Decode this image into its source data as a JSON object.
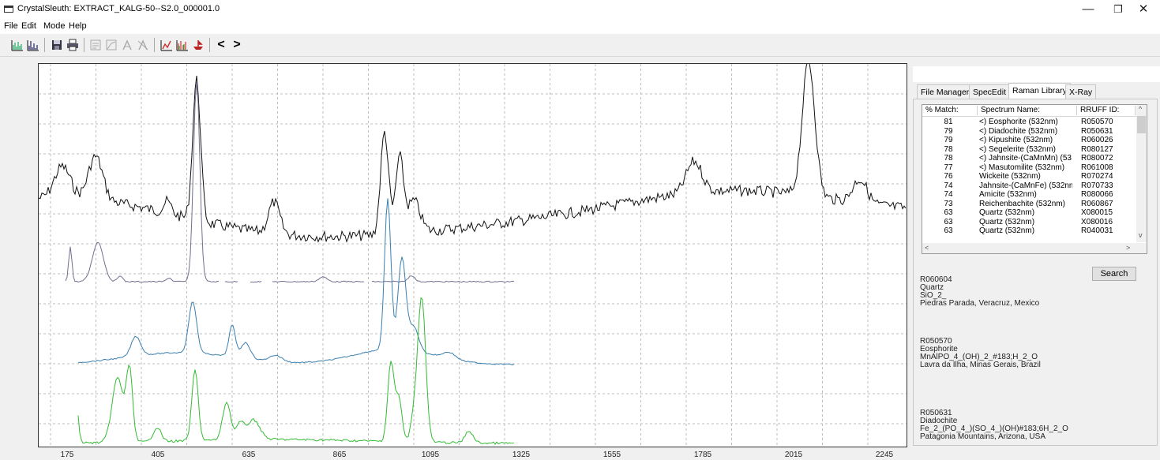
{
  "window": {
    "title": "CrystalSleuth: EXTRACT_KALG-50--S2.0_000001.0",
    "min_glyph": "—",
    "max_glyph": "❐",
    "close_glyph": "✕"
  },
  "menu": [
    "File",
    "Edit",
    "Mode",
    "Help"
  ],
  "toolbar": {
    "icons": [
      "spectrum-view-icon",
      "peak-view-icon",
      "save-icon",
      "print-icon",
      "edit-doc-icon",
      "edit-graph-icon",
      "pick-icon",
      "unpick-icon",
      "fit-icon",
      "multi-spectrum-icon",
      "ship-icon",
      "prev-arrow-icon",
      "next-arrow-icon"
    ],
    "prev": "<",
    "next": ">"
  },
  "plot": {
    "x_ticks": [
      "175",
      "405",
      "635",
      "865",
      "1095",
      "1325",
      "1555",
      "1785",
      "2015",
      "2245"
    ],
    "series_colors": {
      "sample": "#111111",
      "quartz": "#707090",
      "eosphorite": "#3a7fb0",
      "diadochite": "#33bb33"
    }
  },
  "side_panel": {
    "tabs": [
      "File Manager",
      "SpecEdit",
      "Raman Library",
      "X-Ray"
    ],
    "active_tab": "Raman Library",
    "table": {
      "headers": [
        "% Match:",
        "Spectrum Name:",
        "RRUFF ID:"
      ],
      "rows": [
        {
          "match": "81",
          "name": "<) Eosphorite  (532nm)",
          "id": "R050570"
        },
        {
          "match": "79",
          "name": "<) Diadochite  (532nm)",
          "id": "R050631"
        },
        {
          "match": "79",
          "name": "<) Kipushite  (532nm)",
          "id": "R060026"
        },
        {
          "match": "78",
          "name": "<) Segelerite  (532nm)",
          "id": "R080127"
        },
        {
          "match": "78",
          "name": "<) Jahnsite-(CaMnMn)  (53...",
          "id": "R080072"
        },
        {
          "match": "77",
          "name": "<) Masutomilite  (532nm)",
          "id": "R061008"
        },
        {
          "match": "76",
          "name": "Wickeite  (532nm)",
          "id": "R070274"
        },
        {
          "match": "74",
          "name": "Jahnsite-(CaMnFe)  (532nm)",
          "id": "R070733"
        },
        {
          "match": "74",
          "name": "Amicite  (532nm)",
          "id": "R080066"
        },
        {
          "match": "73",
          "name": "Reichenbachite  (532nm)",
          "id": "R060867"
        },
        {
          "match": "63",
          "name": "Quartz  (532nm)",
          "id": "X080015"
        },
        {
          "match": "63",
          "name": "Quartz  (532nm)",
          "id": "X080016"
        },
        {
          "match": "63",
          "name": "Quartz  (532nm)",
          "id": "R040031"
        }
      ]
    },
    "search_label": "Search",
    "info": [
      {
        "id": "R060604",
        "name": "Quartz",
        "formula": "SiO_2_",
        "locality": "Piedras Parada, Veracruz, Mexico"
      },
      {
        "id": "R050570",
        "name": "Eosphorite",
        "formula": "MnAlPO_4_(OH)_2_#183;H_2_O",
        "locality": "Lavra da Ilha, Minas Gerais, Brazil"
      },
      {
        "id": "R050631",
        "name": "Diadochite",
        "formula": "Fe_2_(PO_4_)(SO_4_)(OH)#183;6H_2_O",
        "locality": "Patagonia Mountains, Arizona, USA"
      }
    ]
  }
}
